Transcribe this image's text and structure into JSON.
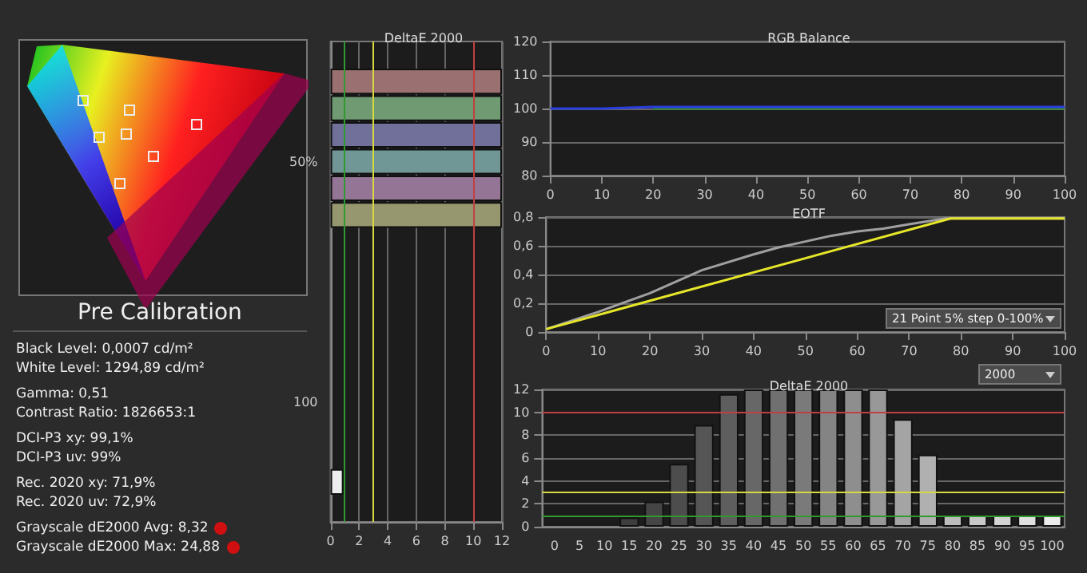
{
  "chart_data": [
    {
      "type": "other",
      "title": "Pre Calibration",
      "annotations": [
        "Black Level: 0,0007 cd/m²",
        "White Level: 1294,89 cd/m²",
        "Gamma: 0,51",
        "Contrast Ratio: 1826653:1",
        "DCI-P3 xy: 99,1%",
        "DCI-P3 uv: 99%",
        "Rec. 2020 xy: 71,9%",
        "Rec. 2020 uv: 72,9%",
        "Grayscale dE2000 Avg: 8,32",
        "Grayscale dE2000 Max: 24,88"
      ]
    },
    {
      "type": "bar",
      "title": "DeltaE 2000",
      "orientation": "horizontal",
      "categories": [
        null,
        null,
        null,
        null,
        "50%",
        null,
        null,
        null,
        null,
        null,
        null,
        null,
        null,
        "100",
        null,
        null,
        null,
        null
      ],
      "values": [
        null,
        12,
        12,
        12,
        12,
        12,
        12,
        null,
        null,
        null,
        null,
        null,
        null,
        null,
        null,
        null,
        0.9,
        null
      ],
      "colors": [
        "#888888",
        "#9a7070",
        "#6f9a72",
        "#70709a",
        "#719696",
        "#957595",
        "#96966f",
        "#888888",
        "#888888",
        "#888888",
        "#888888",
        "#888888",
        "#888888",
        "#888888",
        "#888888",
        "#888888",
        "#eeeeee",
        "#888888"
      ],
      "xlim": [
        0,
        12
      ],
      "xticks": [
        0,
        2,
        4,
        6,
        8,
        10,
        12
      ],
      "grid": "x",
      "ref_lines": [
        {
          "axis": "x",
          "value": 1,
          "color": "#2f9a2f"
        },
        {
          "axis": "x",
          "value": 3,
          "color": "#d8d840"
        },
        {
          "axis": "x",
          "value": 10,
          "color": "#c04040"
        }
      ]
    },
    {
      "type": "line",
      "title": "RGB Balance",
      "x": [
        0,
        10,
        20,
        30,
        40,
        50,
        60,
        70,
        80,
        90,
        100
      ],
      "marker": "none",
      "series": [
        {
          "color": "#2e8b2e",
          "values": [
            null,
            null,
            100,
            100,
            100,
            100,
            100,
            100,
            100,
            100,
            100
          ]
        },
        {
          "color": "#2a3ee0",
          "values": [
            100,
            100,
            100.5,
            100.5,
            100.5,
            100.5,
            100.5,
            100.5,
            100.5,
            100.5,
            100.5
          ]
        }
      ],
      "xlim": [
        0,
        100
      ],
      "xticks": [
        0,
        10,
        20,
        30,
        40,
        50,
        60,
        70,
        80,
        90,
        100
      ],
      "ylim": [
        80,
        120
      ],
      "yticks": [
        80,
        90,
        100,
        110,
        120
      ],
      "grid": "y"
    },
    {
      "type": "line",
      "title": "EOTF",
      "marker": "none",
      "annotations": [
        "21 Point 5% step 0-100%"
      ],
      "series": [
        {
          "color": "#a0a0a0",
          "x": [
            0,
            10,
            20,
            30,
            40,
            45,
            50,
            55,
            60,
            65,
            70,
            77,
            100
          ],
          "values": [
            0.02,
            0.14,
            0.27,
            0.43,
            0.54,
            0.59,
            0.63,
            0.67,
            0.7,
            0.72,
            0.75,
            0.79,
            0.79
          ]
        },
        {
          "color": "#e6e62a",
          "x": [
            0,
            78,
            100
          ],
          "values": [
            0.02,
            0.79,
            0.79
          ]
        }
      ],
      "xlim": [
        0,
        100
      ],
      "xticks": [
        0,
        10,
        20,
        30,
        40,
        50,
        60,
        70,
        80,
        90,
        100
      ],
      "ylim": [
        0,
        0.8
      ],
      "yticks": [
        0,
        {
          "value": 0.2,
          "label": "0,2"
        },
        {
          "value": 0.4,
          "label": "0,4"
        },
        {
          "value": 0.6,
          "label": "0,6"
        },
        {
          "value": 0.8,
          "label": "0,8"
        }
      ],
      "grid": "y"
    },
    {
      "type": "bar",
      "title": "DeltaE 2000",
      "annotations": [
        "2000"
      ],
      "categories": [
        "0",
        "5",
        "10",
        "15",
        "20",
        "25",
        "30",
        "35",
        "40",
        "45",
        "50",
        "55",
        "60",
        "65",
        "70",
        "75",
        "80",
        "85",
        "90",
        "95",
        "100"
      ],
      "values": [
        0,
        0,
        0,
        0.8,
        2.2,
        5.5,
        8.9,
        11.6,
        12,
        12,
        12,
        12,
        12,
        12,
        9.4,
        6.3,
        1,
        1,
        1,
        1,
        1
      ],
      "colors": [
        "#2e2e2e",
        "#333333",
        "#383838",
        "#3e3e3e",
        "#454545",
        "#4d4d4d",
        "#555555",
        "#5e5e5e",
        "#676767",
        "#707070",
        "#7a7a7a",
        "#848484",
        "#8e8e8e",
        "#989898",
        "#a4a4a4",
        "#b0b0b0",
        "#bcbcbc",
        "#c8c8c8",
        "#d4d4d4",
        "#e0e0e0",
        "#ececec"
      ],
      "ylim": [
        0,
        12
      ],
      "yticks": [
        0,
        2,
        4,
        6,
        8,
        10,
        12
      ],
      "grid": "y",
      "ref_lines": [
        {
          "axis": "y",
          "value": 1,
          "color": "#2f9a2f"
        },
        {
          "axis": "y",
          "value": 3,
          "color": "#d8d840"
        },
        {
          "axis": "y",
          "value": 10,
          "color": "#c04040"
        }
      ]
    }
  ]
}
